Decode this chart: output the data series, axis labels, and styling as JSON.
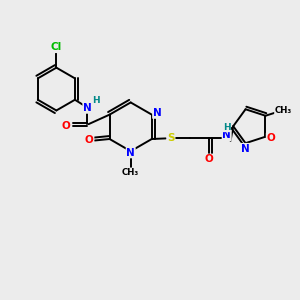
{
  "bg_color": "#ececec",
  "atom_colors": {
    "N": "#0000ff",
    "O": "#ff0000",
    "S": "#cccc00",
    "Cl": "#00bb00",
    "H": "#008888",
    "C": "#000000"
  },
  "figsize": [
    3.0,
    3.0
  ],
  "dpi": 100
}
